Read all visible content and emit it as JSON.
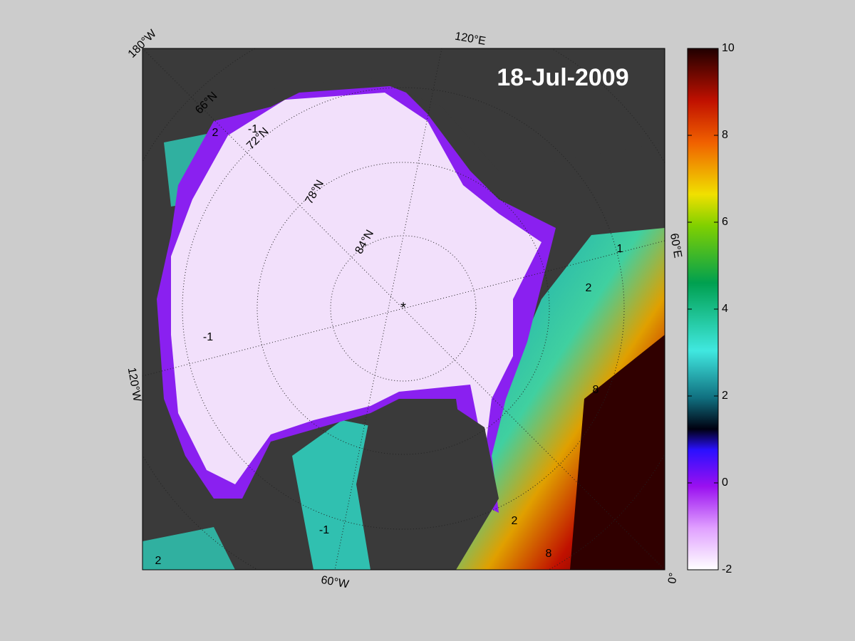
{
  "title": "18-Jul-2009",
  "colorbar": {
    "lim": [
      -2,
      10
    ],
    "ticks": [
      -2,
      0,
      2,
      4,
      6,
      8,
      10
    ]
  },
  "longitude_labels": [
    "180°W",
    "120°E",
    "60°E",
    "0°",
    "60°W",
    "120°W"
  ],
  "latitude_labels": [
    "66°N",
    "72°N",
    "78°N",
    "84°N"
  ],
  "contour_labels": [
    -1,
    2,
    2,
    8,
    8,
    -1,
    2,
    1,
    -1,
    2
  ]
}
